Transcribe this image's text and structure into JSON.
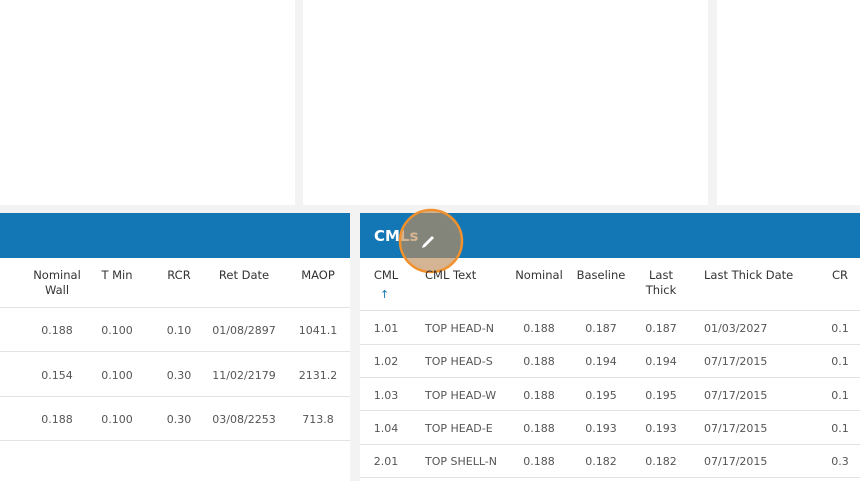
{
  "left_table": {
    "headers": [
      "Nominal Wall",
      "T Min",
      "RCR",
      "Ret Date",
      "MAOP"
    ],
    "rows": [
      [
        "0.188",
        "0.100",
        "0.10",
        "01/08/2897",
        "1041.1"
      ],
      [
        "0.154",
        "0.100",
        "0.30",
        "11/02/2179",
        "2131.2"
      ],
      [
        "0.188",
        "0.100",
        "0.30",
        "03/08/2253",
        "713.8"
      ]
    ]
  },
  "cml_table": {
    "title": "CMLs",
    "headers": [
      "CML",
      "CML Text",
      "Nominal",
      "Baseline",
      "Last Thick",
      "Last Thick Date",
      "CR"
    ],
    "rows": [
      [
        "1.01",
        "TOP HEAD-N",
        "0.188",
        "0.187",
        "0.187",
        "01/03/2027",
        "0.1"
      ],
      [
        "1.02",
        "TOP HEAD-S",
        "0.188",
        "0.194",
        "0.194",
        "07/17/2015",
        "0.1"
      ],
      [
        "1.03",
        "TOP HEAD-W",
        "0.188",
        "0.195",
        "0.195",
        "07/17/2015",
        "0.1"
      ],
      [
        "1.04",
        "TOP HEAD-E",
        "0.188",
        "0.193",
        "0.193",
        "07/17/2015",
        "0.1"
      ],
      [
        "2.01",
        "TOP SHELL-N",
        "0.188",
        "0.182",
        "0.182",
        "07/17/2015",
        "0.3"
      ]
    ]
  }
}
